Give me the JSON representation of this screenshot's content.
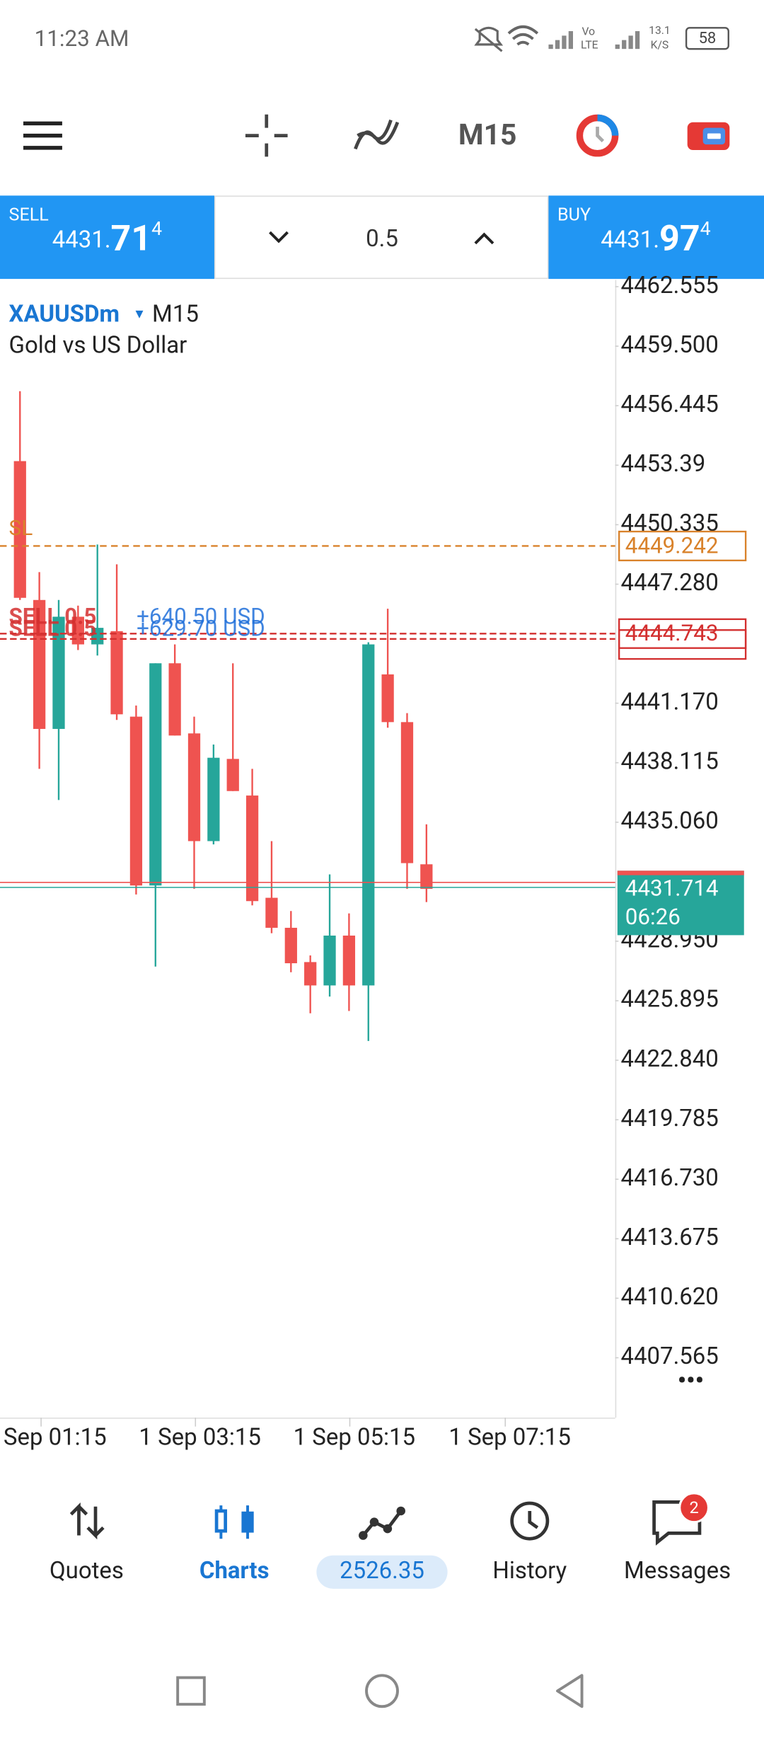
{
  "status_bar": {
    "time": "11:23 AM",
    "net_speed": "13.1",
    "net_unit": "K/S",
    "battery": "58",
    "volte": "Vo",
    "lte": "LTE"
  },
  "toolbar": {
    "timeframe": "M15"
  },
  "trade_panel": {
    "sell": {
      "label": "SELL",
      "price_main": "4431.",
      "price_big": "71",
      "price_sup": "4"
    },
    "volume": "0.5",
    "buy": {
      "label": "BUY",
      "price_main": "4431.",
      "price_big": "97",
      "price_sup": "4"
    }
  },
  "chart": {
    "type": "candlestick",
    "symbol": "XAUUSDm",
    "symbol_arrow": "▾",
    "timeframe": "M15",
    "description": "Gold vs US Dollar",
    "up_color": "#26a69a",
    "down_color": "#ef5350",
    "ylim": [
      4404.49,
      4462.897
    ],
    "yticks": [
      4462.555,
      {
        "value": 4459.5,
        "label": "4459.500"
      },
      4456.445,
      4453.39,
      4450.335,
      {
        "value": 4447.28,
        "label": "4447.280"
      },
      {
        "value": 4441.17,
        "label": "4441.170"
      },
      4438.115,
      {
        "value": 4435.06,
        "label": "4435.060"
      },
      {
        "value": 4428.95,
        "label": "4428.950"
      },
      4425.895,
      {
        "value": 4422.84,
        "label": "4422.840"
      },
      4419.785,
      {
        "value": 4416.73,
        "label": "4416.730"
      },
      4413.675,
      {
        "value": 4410.62,
        "label": "4410.620"
      },
      4407.565
    ],
    "time_labels": [
      "Sep 01:15",
      "1 Sep 03:15",
      "1 Sep 05:15",
      "1 Sep 07:15"
    ],
    "candles": [
      {
        "open": 4453.6,
        "high": 4457.19,
        "low": 4446.47,
        "close": 4446.58
      },
      {
        "open": 4446.47,
        "high": 4447.9,
        "low": 4437.8,
        "close": 4439.85
      },
      {
        "open": 4439.85,
        "high": 4446.47,
        "low": 4436.2,
        "close": 4445.61
      },
      {
        "open": 4445.61,
        "high": 4446.18,
        "low": 4443.9,
        "close": 4444.19
      },
      {
        "open": 4444.19,
        "high": 4449.32,
        "low": 4443.62,
        "close": 4445.04
      },
      {
        "open": 4444.87,
        "high": 4448.3,
        "low": 4440.31,
        "close": 4440.6
      },
      {
        "open": 4440.48,
        "high": 4441.05,
        "low": 4431.35,
        "close": 4431.81
      },
      {
        "open": 4431.81,
        "high": 4443.22,
        "low": 4427.65,
        "close": 4443.22
      },
      {
        "open": 4443.22,
        "high": 4444.19,
        "low": 4439.51,
        "close": 4439.51
      },
      {
        "open": 4439.62,
        "high": 4440.48,
        "low": 4431.64,
        "close": 4434.09
      },
      {
        "open": 4434.09,
        "high": 4439.05,
        "low": 4433.92,
        "close": 4438.37
      },
      {
        "open": 4438.31,
        "high": 4443.22,
        "low": 4436.66,
        "close": 4436.66
      },
      {
        "open": 4436.43,
        "high": 4437.8,
        "low": 4430.79,
        "close": 4431.01
      },
      {
        "open": 4431.18,
        "high": 4434.09,
        "low": 4429.36,
        "close": 4429.64
      },
      {
        "open": 4429.64,
        "high": 4430.5,
        "low": 4427.36,
        "close": 4427.82
      },
      {
        "open": 4427.88,
        "high": 4428.22,
        "low": 4425.25,
        "close": 4426.68
      },
      {
        "open": 4426.68,
        "high": 4432.38,
        "low": 4426.11,
        "close": 4429.24
      },
      {
        "open": 4429.24,
        "high": 4430.38,
        "low": 4425.37,
        "close": 4426.68
      },
      {
        "open": 4426.68,
        "high": 4444.3,
        "low": 4423.83,
        "close": 4444.19
      },
      {
        "open": 4442.65,
        "high": 4446.02,
        "low": 4439.91,
        "close": 4440.2
      },
      {
        "open": 4440.2,
        "high": 4440.66,
        "low": 4431.64,
        "close": 4432.96
      },
      {
        "open": 4432.9,
        "high": 4434.95,
        "low": 4430.96,
        "close": 4431.64
      }
    ],
    "stop_loss": {
      "label": "SL",
      "price": 4449.242,
      "color": "#d9822b"
    },
    "positions": [
      {
        "label": "SELL 0.5",
        "profit": "+640.50 USD",
        "price": 4444.743
      },
      {
        "label": "SELL 0.5",
        "profit": "+629.70 USD",
        "price": 4444.47
      }
    ],
    "position_color": "#d32f2f",
    "current": {
      "price": 4431.714,
      "ask_price": 4431.97,
      "countdown": "06:26"
    },
    "more": "•••"
  },
  "bottom_nav": {
    "items": [
      "Quotes",
      "Charts",
      "2526.35",
      "History",
      "Messages"
    ],
    "badge": "2"
  }
}
